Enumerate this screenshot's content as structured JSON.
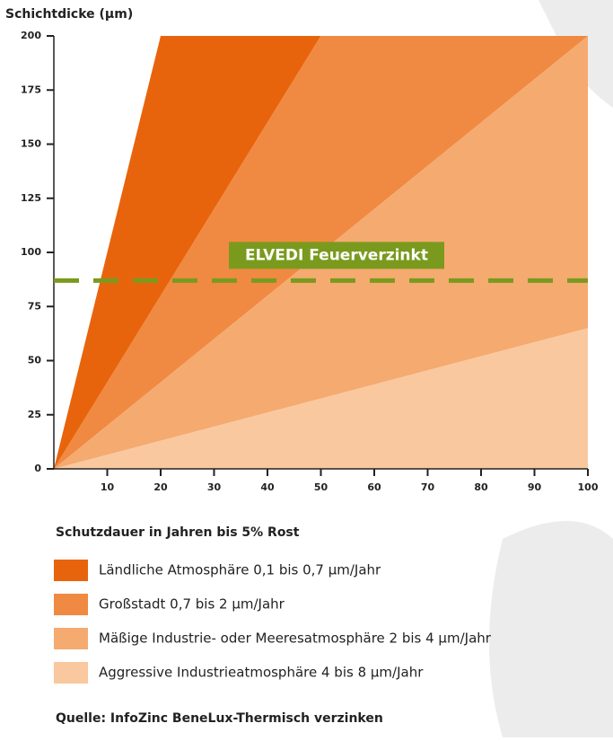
{
  "chart_data": {
    "type": "area",
    "y_label": "Schichtdicke (µm)",
    "xlim": [
      0,
      100
    ],
    "ylim": [
      0,
      200
    ],
    "xticks": [
      10,
      20,
      30,
      40,
      50,
      60,
      70,
      80,
      90,
      100
    ],
    "yticks": [
      0,
      25,
      50,
      75,
      100,
      125,
      150,
      175,
      200
    ],
    "series": [
      {
        "name": "Ländliche Atmosphäre 0,1 bis 0,7 µm/Jahr",
        "color": "#e8640c",
        "x": [
          0,
          20,
          50
        ],
        "values": [
          0,
          200,
          200
        ]
      },
      {
        "name": "Großstadt 0,7 bis 2 µm/Jahr",
        "color": "#f08a42",
        "x": [
          0,
          50,
          100
        ],
        "values": [
          0,
          200,
          200
        ]
      },
      {
        "name": "Mäßige Industrie- oder Meeresatmosphäre 2 bis 4 µm/Jahr",
        "color": "#f5aa70",
        "x": [
          0,
          100,
          100
        ],
        "values": [
          0,
          200,
          65
        ]
      },
      {
        "name": "Aggressive Industrieatmosphäre 4 bis 8 µm/Jahr",
        "color": "#f9c89e",
        "x": [
          0,
          100,
          100
        ],
        "values": [
          0,
          65,
          0
        ]
      }
    ],
    "reference_line": {
      "value": 87,
      "label": "ELVEDI Feuerverzinkt",
      "color": "#7a9a1e"
    },
    "legend_title": "Schutzdauer in Jahren bis 5% Rost",
    "source": "Quelle: InfoZinc BeneLux-Thermisch verzinken"
  }
}
